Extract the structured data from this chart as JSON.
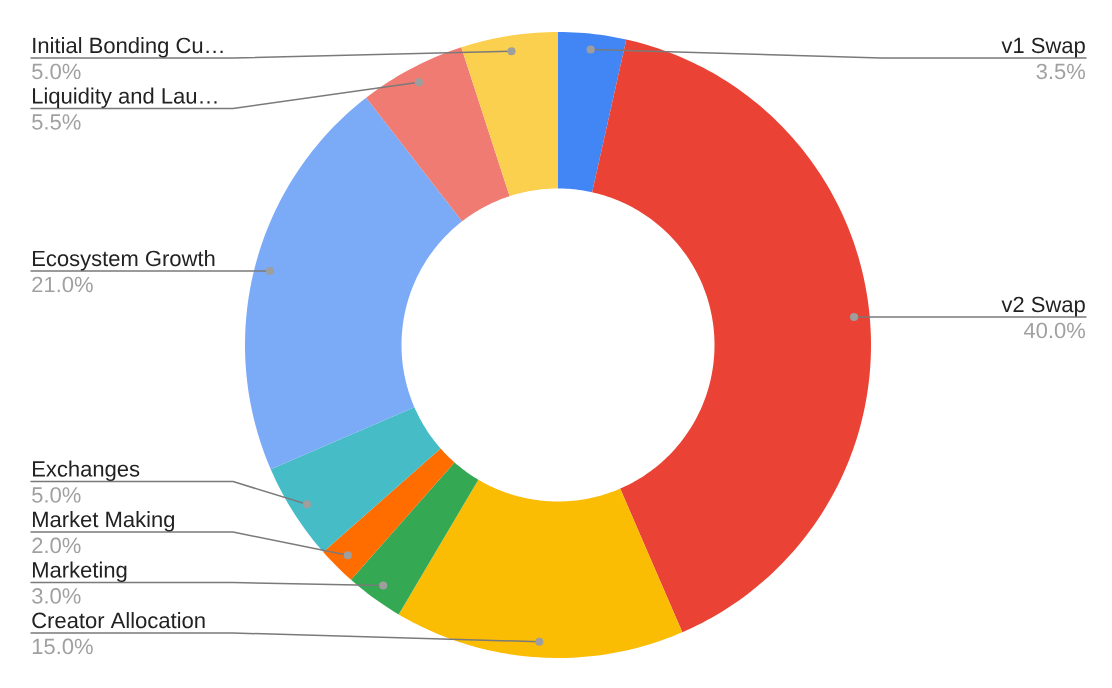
{
  "chart_data": {
    "type": "donut",
    "categories": [
      "v1 Swap",
      "v2 Swap",
      "Creator Allocation",
      "Marketing",
      "Market Making",
      "Exchanges",
      "Ecosystem Growth",
      "Liquidity and Lau…",
      "Initial Bonding Cu…"
    ],
    "values": [
      3.5,
      40,
      15,
      3,
      2,
      5,
      21,
      5.5,
      5
    ],
    "colors": [
      "#4285f4",
      "#ea4335",
      "#fbbc04",
      "#34a853",
      "#ff6d01",
      "#46bdc6",
      "#7baaf7",
      "#f07b72",
      "#fcd04f"
    ],
    "value_labels": [
      "3.5%",
      "40.0%",
      "15.0%",
      "3.0%",
      "2.0%",
      "5.0%",
      "21.0%",
      "5.5%",
      "5.0%"
    ]
  }
}
